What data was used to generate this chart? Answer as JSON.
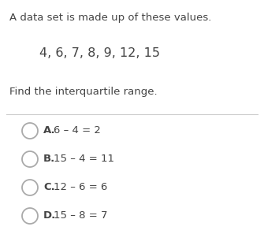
{
  "bg_color": "#ffffff",
  "line1": "A data set is made up of these values.",
  "line2": "4, 6, 7, 8, 9, 12, 15",
  "line3": "Find the interquartile range.",
  "options": [
    {
      "letter": "A.",
      "text": "6 – 4 = 2"
    },
    {
      "letter": "B.",
      "text": "15 – 4 = 11"
    },
    {
      "letter": "C.",
      "text": "12 – 6 = 6"
    },
    {
      "letter": "D.",
      "text": "15 – 8 = 7"
    }
  ],
  "text_color": "#444444",
  "circle_color": "#aaaaaa",
  "divider_color": "#cccccc",
  "font_size_main": 9.5,
  "font_size_data": 11.5,
  "font_size_options": 9.5
}
